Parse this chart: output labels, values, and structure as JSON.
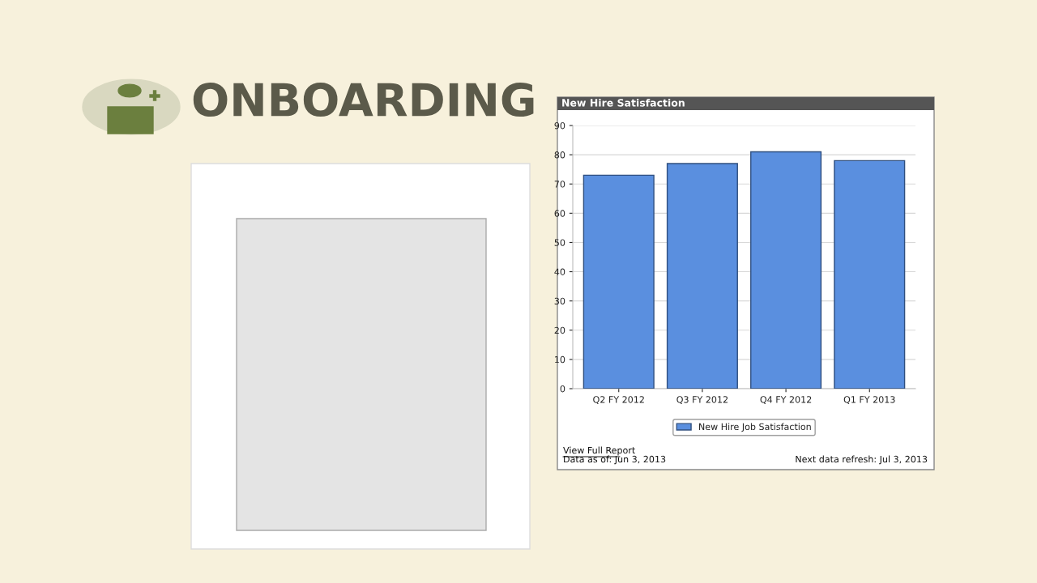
{
  "chart_data": {
    "type": "bar",
    "title": "New Hire Satisfaction",
    "categories": [
      "Q2 FY 2012",
      "Q3 FY 2012",
      "Q4 FY 2012",
      "Q1 FY 2013"
    ],
    "series": [
      {
        "name": "New Hire Job Satisfaction",
        "color": "#5a8fdf",
        "values": [
          73,
          77,
          81,
          78
        ]
      }
    ],
    "ylim": [
      0,
      90
    ],
    "yticks": [
      0,
      10,
      20,
      30,
      40,
      50,
      60,
      70,
      80,
      90
    ],
    "grid": "y",
    "legend": "bottom",
    "annotations": [
      "ONBOARDING",
      "View Full Report",
      "Data as of: Jun 3, 2013",
      "Next data refresh: Jul 3, 2013"
    ]
  }
}
